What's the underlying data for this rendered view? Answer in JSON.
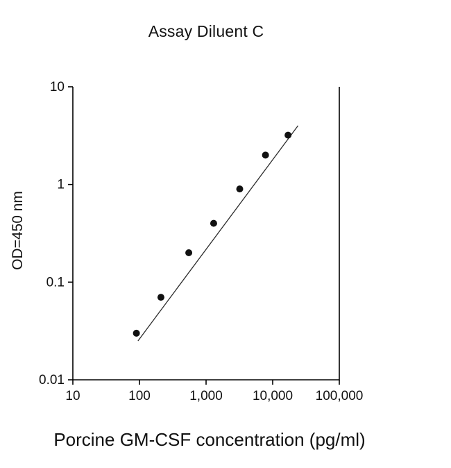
{
  "page": {
    "background": "#ffffff"
  },
  "chart_data": {
    "type": "scatter",
    "title": "Assay Diluent C",
    "xlabel": "Porcine GM-CSF concentration (pg/ml)",
    "ylabel": "OD=450 nm",
    "x_scale": "log",
    "y_scale": "log",
    "xlim": [
      10,
      100000
    ],
    "ylim": [
      0.01,
      10
    ],
    "grid": false,
    "legend": "none",
    "marker_color": "#111111",
    "line_color": "#2b2b2b",
    "axis_color": "#000000",
    "x_ticks": [
      {
        "value": 10,
        "label": "10"
      },
      {
        "value": 100,
        "label": "100"
      },
      {
        "value": 1000,
        "label": "1,000"
      },
      {
        "value": 10000,
        "label": "10,000"
      },
      {
        "value": 100000,
        "label": "100,000"
      }
    ],
    "y_ticks": [
      {
        "value": 10,
        "label": "10"
      },
      {
        "value": 1,
        "label": "1"
      },
      {
        "value": 0.1,
        "label": "0.1"
      },
      {
        "value": 0.01,
        "label": "0.01"
      }
    ],
    "points": [
      {
        "x": 90,
        "y": 0.03
      },
      {
        "x": 210,
        "y": 0.07
      },
      {
        "x": 550,
        "y": 0.2
      },
      {
        "x": 1300,
        "y": 0.4
      },
      {
        "x": 3200,
        "y": 0.9
      },
      {
        "x": 7800,
        "y": 2.0
      },
      {
        "x": 17000,
        "y": 3.2
      }
    ],
    "fit_line": {
      "x1": 95,
      "y1": 0.025,
      "x2": 24000,
      "y2": 4.0
    }
  }
}
